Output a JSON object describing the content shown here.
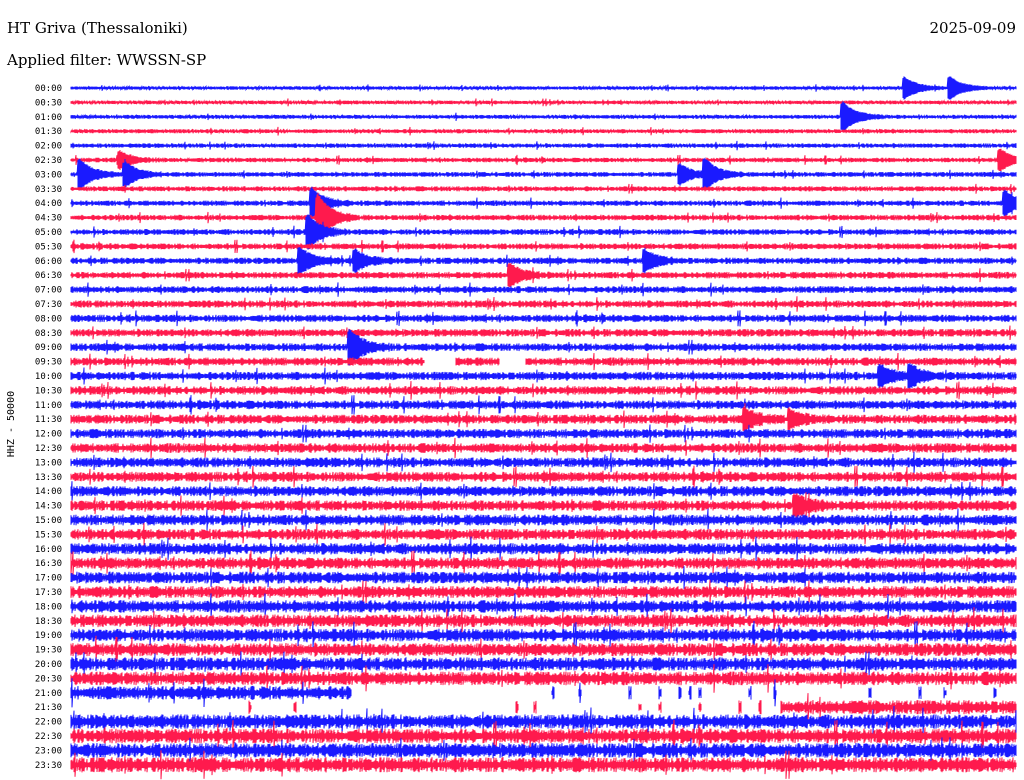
{
  "header": {
    "station": "HT Griva (Thessaloniki)",
    "date": "2025-09-09",
    "filter_label": "Applied filter: WWSSN-SP"
  },
  "chart_data": {
    "type": "line",
    "title": "HT Griva (Thessaloniki)",
    "ylabel": "HHZ - 50000",
    "row_labels": [
      "00:00",
      "00:30",
      "01:00",
      "01:30",
      "02:00",
      "02:30",
      "03:00",
      "03:30",
      "04:00",
      "04:30",
      "05:00",
      "05:30",
      "06:00",
      "06:30",
      "07:00",
      "07:30",
      "08:00",
      "08:30",
      "09:00",
      "09:30",
      "10:00",
      "10:30",
      "11:00",
      "11:30",
      "12:00",
      "12:30",
      "13:00",
      "13:30",
      "14:00",
      "14:30",
      "15:00",
      "15:30",
      "16:00",
      "16:30",
      "17:00",
      "17:30",
      "18:00",
      "18:30",
      "19:00",
      "19:30",
      "20:00",
      "20:30",
      "21:00",
      "21:30",
      "22:00",
      "22:30",
      "23:00",
      "23:30"
    ],
    "series_colors": [
      "#1a1aff",
      "#ff1a4d"
    ],
    "color_pattern": "alternating rows starting with blue",
    "grid": false
  }
}
